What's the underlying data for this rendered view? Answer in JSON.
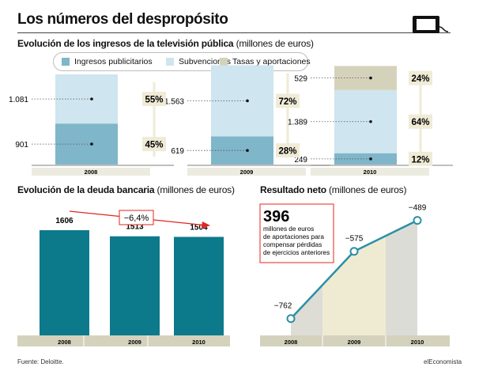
{
  "header": {
    "title": "Los números del despropósito"
  },
  "ingresos": {
    "title": "Evolución de los ingresos de la televisión pública",
    "unit": "(millones de euros)"
  },
  "legend": [
    {
      "label": "Ingresos publicitarios",
      "color": "#7fb6c9"
    },
    {
      "label": "Subvenciones",
      "color": "#cfe5ef"
    },
    {
      "label": "Tasas y aportaciones",
      "color": "#d5d2bb"
    }
  ],
  "deuda": {
    "title": "Evolución de la deuda bancaria",
    "unit": "(millones de euros)"
  },
  "neto": {
    "title": "Resultado neto",
    "unit": "(millones de euros)"
  },
  "callout": {
    "number": "396",
    "text": [
      "millones de euros",
      "de aportaciones para",
      "compensar pérdidas",
      "de ejercicios anteriores"
    ]
  },
  "footer": {
    "source": "Fuente: Deloitte.",
    "brand": "elEconomista"
  },
  "colors": {
    "publicidad": "#7fb6c9",
    "subvenciones": "#cfe5ef",
    "tasas": "#d5d2bb",
    "deuda_bar": "#0c7a8b",
    "line": "#2a8fa6",
    "axis_band": "#d4d2bc",
    "arrow": "#e3251e",
    "pct_box": "#efebd6"
  },
  "chart_data": [
    {
      "type": "bar",
      "subtype": "stacked",
      "title": "Evolución de los ingresos de la televisión pública (millones de euros)",
      "categories": [
        "2008",
        "2009",
        "2010"
      ],
      "series": [
        {
          "name": "Ingresos publicitarios",
          "values": [
            901,
            619,
            249
          ],
          "value_labels": [
            "901",
            "619",
            "249"
          ],
          "shares": [
            "45%",
            "28%",
            "12%"
          ]
        },
        {
          "name": "Subvenciones",
          "values": [
            1081,
            1563,
            1389
          ],
          "value_labels": [
            "1.081",
            "1.563",
            "1.389"
          ],
          "shares": [
            "55%",
            "72%",
            "64%"
          ]
        },
        {
          "name": "Tasas y aportaciones",
          "values": [
            0,
            0,
            529
          ],
          "value_labels": [
            "",
            "",
            "529"
          ],
          "shares": [
            "",
            "",
            "24%"
          ]
        }
      ]
    },
    {
      "type": "bar",
      "title": "Evolución de la deuda bancaria (millones de euros)",
      "categories": [
        "2008",
        "2009",
        "2010"
      ],
      "values": [
        1606,
        1513,
        1504
      ],
      "value_labels": [
        "1606",
        "1513",
        "1504"
      ],
      "annotation": "−6,4%",
      "ylim": [
        0,
        1606
      ]
    },
    {
      "type": "line",
      "title": "Resultado neto (millones de euros)",
      "categories": [
        "2008",
        "2009",
        "2010"
      ],
      "values": [
        -762,
        -575,
        -489
      ],
      "value_labels": [
        "−762",
        "−575",
        "−489"
      ],
      "ylim": [
        -800,
        -470
      ]
    }
  ]
}
